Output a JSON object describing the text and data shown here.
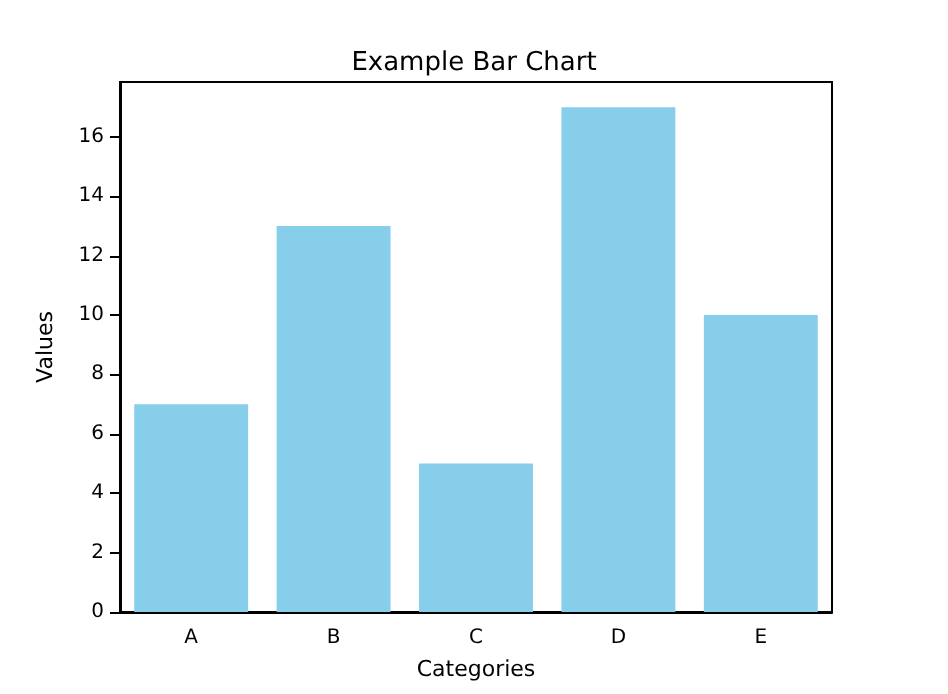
{
  "chart_data": {
    "type": "bar",
    "title": "Example Bar Chart",
    "xlabel": "Categories",
    "ylabel": "Values",
    "categories": [
      "A",
      "B",
      "C",
      "D",
      "E"
    ],
    "values": [
      7,
      13,
      5,
      17,
      10
    ],
    "color": "#87ceeb",
    "ylim": [
      0,
      17.85
    ],
    "yticks": [
      0,
      2,
      4,
      6,
      8,
      10,
      12,
      14,
      16
    ],
    "grid": false
  }
}
